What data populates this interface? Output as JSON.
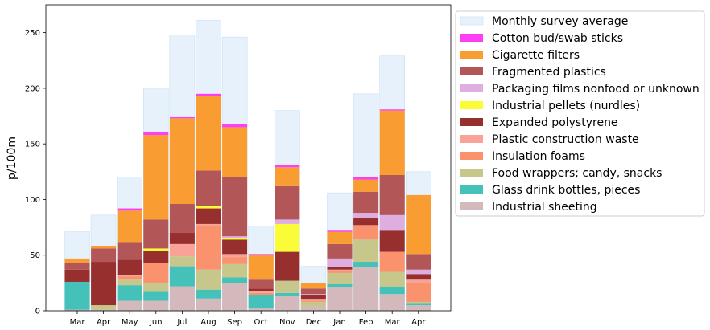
{
  "chart_data": {
    "type": "bar",
    "stacked": true,
    "title": "",
    "xlabel": "",
    "ylabel": "p/100m",
    "ylim": [
      0,
      275
    ],
    "yticks": [
      0,
      50,
      100,
      150,
      200,
      250
    ],
    "legend_position": "outside-right",
    "categories": [
      "Mar",
      "Apr",
      "May",
      "Jun",
      "Jul",
      "Aug",
      "Sep",
      "Oct",
      "Nov",
      "Dec",
      "Jan",
      "Feb",
      "Mar",
      "Apr"
    ],
    "background_series": {
      "name": "Monthly survey average",
      "color": "#e6f1fc",
      "values": [
        71,
        86,
        120,
        200,
        248,
        261,
        246,
        76,
        180,
        40,
        106,
        195,
        229,
        125
      ]
    },
    "series": [
      {
        "name": "Industrial sheeting",
        "color": "#d3b9bc",
        "values": [
          1,
          1,
          9,
          9,
          22,
          11,
          25,
          2,
          13,
          4,
          21,
          39,
          15,
          5
        ]
      },
      {
        "name": "Glass drink bottles, pieces",
        "color": "#44c1b8",
        "values": [
          25,
          0,
          14,
          8,
          18,
          8,
          5,
          12,
          3,
          0,
          3,
          5,
          6,
          2
        ]
      },
      {
        "name": "Food wrappers; candy, snacks",
        "color": "#c7c78b",
        "values": [
          0,
          4,
          5,
          8,
          9,
          18,
          12,
          0,
          11,
          4,
          10,
          20,
          14,
          1
        ]
      },
      {
        "name": "Insulation foams",
        "color": "#fa926e",
        "values": [
          0,
          0,
          3,
          18,
          0,
          40,
          6,
          2,
          0,
          1,
          2,
          13,
          18,
          17
        ]
      },
      {
        "name": "Plastic construction waste",
        "color": "#f9a398",
        "values": [
          0,
          0,
          1,
          0,
          11,
          1,
          3,
          2,
          0,
          1,
          1,
          0,
          0,
          3
        ]
      },
      {
        "name": "Expanded polystyrene",
        "color": "#972f2e",
        "values": [
          11,
          39,
          14,
          11,
          10,
          14,
          13,
          2,
          26,
          4,
          2,
          6,
          19,
          5
        ]
      },
      {
        "name": "Industrial pellets (nurdles)",
        "color": "#fbfc38",
        "values": [
          0,
          0,
          0,
          2,
          0,
          2,
          1,
          0,
          25,
          0,
          0,
          0,
          0,
          0
        ]
      },
      {
        "name": "Packaging films nonfood or unknown",
        "color": "#dfaee0",
        "values": [
          0,
          0,
          0,
          0,
          0,
          0,
          2,
          0,
          4,
          1,
          8,
          5,
          14,
          4
        ]
      },
      {
        "name": "Fragmented plastics",
        "color": "#b35658",
        "values": [
          6,
          12,
          15,
          26,
          26,
          32,
          53,
          8,
          30,
          5,
          13,
          19,
          36,
          14
        ]
      },
      {
        "name": "Cigarette filters",
        "color": "#f99d33",
        "values": [
          4,
          2,
          29,
          76,
          77,
          67,
          45,
          22,
          17,
          5,
          11,
          11,
          58,
          53
        ]
      },
      {
        "name": "Cotton bud/swab sticks",
        "color": "#fc3ef4",
        "values": [
          0,
          0,
          2,
          3,
          1,
          2,
          3,
          1,
          2,
          0,
          1,
          2,
          1,
          0
        ]
      }
    ]
  }
}
